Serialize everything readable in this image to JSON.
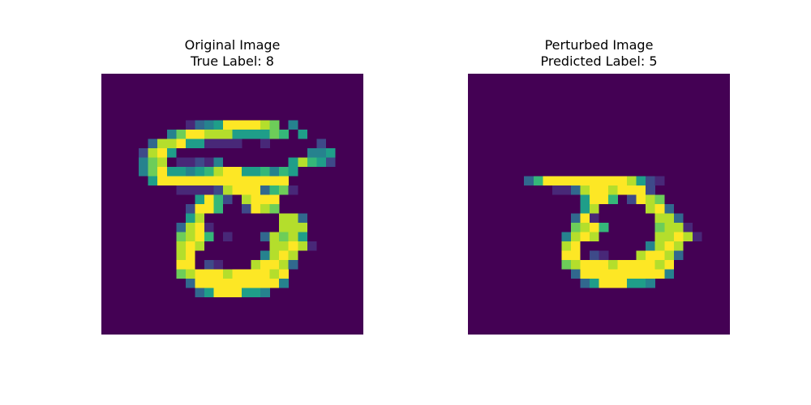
{
  "figure": {
    "panels": [
      {
        "title_line1": "Original Image",
        "title_line2": "True Label: 8"
      },
      {
        "title_line1": "Perturbed Image",
        "title_line2": "Predicted Label: 5"
      }
    ]
  },
  "colors": {
    "background": "#440154",
    "palette": {
      "1": "#482878",
      "2": "#3e4a89",
      "3": "#31688e",
      "4": "#26828e",
      "5": "#1f9e89",
      "6": "#35b779",
      "7": "#6dcd59",
      "8": "#b4de2c",
      "9": "#fde725"
    }
  },
  "images": {
    "original": [
      "............................",
      "............................",
      "............................",
      "............................",
      "............................",
      ".........1345999987.4.......",
      ".......4799888555576.5......",
      ".....3889551111..1.....2....",
      "....2895..............445...",
      "....478.11214.......58652...",
      "....47955456899556465.......",
      ".....599999999999999........",
      "........1111289993671.......",
      "..........5962.8999.........",
      ".........2996..2987.........",
      ".........58........883......",
      "........3891.......888......",
      "........7896.1...38785......",
      "........898.......88981.....",
      "........89.......4898.......",
      "........99.21...89983.......",
      "........789998999989........",
      ".........39999999994........",
      "..........35999554..........",
      "............................",
      "............................",
      "............................",
      "............................"
    ],
    "perturbed": [
      "............................",
      "............................",
      "............................",
      "............................",
      "............................",
      "............................",
      "............................",
      "............................",
      "............................",
      "............................",
      "............................",
      "......369999999998521.......",
      ".........11389989992........",
      "............5996.2987.......",
      "............58.....893......",
      "...........391......883.....",
      "...........7896.....7881....",
      "..........4898......88981...",
      "..........89.......4898.....",
      "..........99.21...89983.....",
      "..........789998999989......",
      "...........39999999994......",
      "............35999554........",
      "............................",
      "............................",
      "............................",
      "............................",
      "............................"
    ]
  }
}
